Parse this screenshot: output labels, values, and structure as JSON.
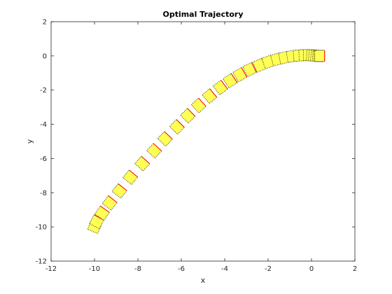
{
  "chart_data": {
    "type": "scatter",
    "title": "Optimal Trajectory",
    "xlabel": "x",
    "ylabel": "y",
    "xlim": [
      -12,
      2
    ],
    "ylim": [
      -12,
      2
    ],
    "x_ticks": [
      "-12",
      "-10",
      "-8",
      "-6",
      "-4",
      "-2",
      "0",
      "2"
    ],
    "y_ticks": [
      "-12",
      "-10",
      "-8",
      "-6",
      "-4",
      "-2",
      "0",
      "2"
    ],
    "grid": false,
    "marker_style": {
      "fill_color": "#ffff55",
      "outline_color": "#000000",
      "outline_style": "dotted",
      "heading_edge_color": "#ff0000"
    },
    "points": [
      {
        "x": -10.0,
        "y": -10.0
      },
      {
        "x": -9.9,
        "y": -9.7
      },
      {
        "x": -9.65,
        "y": -9.2
      },
      {
        "x": -9.3,
        "y": -8.6
      },
      {
        "x": -8.85,
        "y": -7.9
      },
      {
        "x": -8.35,
        "y": -7.1
      },
      {
        "x": -7.8,
        "y": -6.3
      },
      {
        "x": -7.25,
        "y": -5.55
      },
      {
        "x": -6.75,
        "y": -4.85
      },
      {
        "x": -6.2,
        "y": -4.15
      },
      {
        "x": -5.7,
        "y": -3.5
      },
      {
        "x": -5.2,
        "y": -2.9
      },
      {
        "x": -4.7,
        "y": -2.35
      },
      {
        "x": -4.2,
        "y": -1.85
      },
      {
        "x": -3.75,
        "y": -1.45
      },
      {
        "x": -3.3,
        "y": -1.1
      },
      {
        "x": -2.85,
        "y": -0.8
      },
      {
        "x": -2.4,
        "y": -0.55
      },
      {
        "x": -2.0,
        "y": -0.35
      },
      {
        "x": -1.6,
        "y": -0.2
      },
      {
        "x": -1.25,
        "y": -0.1
      },
      {
        "x": -0.9,
        "y": -0.02
      },
      {
        "x": -0.6,
        "y": 0.02
      },
      {
        "x": -0.35,
        "y": 0.04
      },
      {
        "x": -0.15,
        "y": 0.04
      },
      {
        "x": 0.0,
        "y": 0.03
      },
      {
        "x": 0.1,
        "y": 0.02
      },
      {
        "x": 0.2,
        "y": 0.01
      },
      {
        "x": 0.28,
        "y": 0.0
      },
      {
        "x": 0.34,
        "y": 0.0
      },
      {
        "x": 0.38,
        "y": 0.0
      }
    ]
  }
}
